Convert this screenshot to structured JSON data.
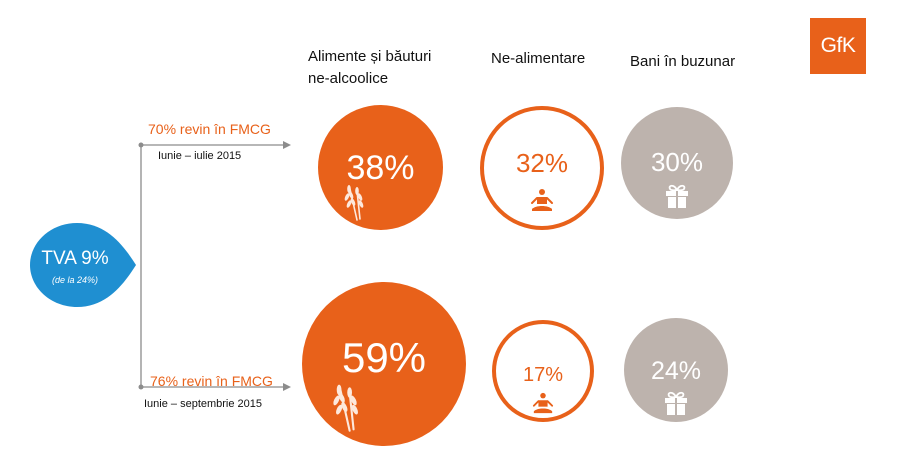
{
  "logo": {
    "text": "GfK",
    "color": "#e8611a"
  },
  "columns": {
    "food": "Alimente și băuturi ne-alcoolice",
    "nonfood": "Ne-alimentare",
    "pocket": "Bani în buzunar"
  },
  "source": {
    "title": "TVA 9%",
    "subtitle": "(de la 24%)",
    "color": "#1f8fd1"
  },
  "rows": [
    {
      "label": "70% revin în FMCG",
      "period": "Iunie – iulie 2015",
      "food": "38%",
      "nonfood": "32%",
      "pocket": "30%"
    },
    {
      "label": "76% revin în FMCG",
      "period": "Iunie – septembrie 2015",
      "food": "59%",
      "nonfood": "17%",
      "pocket": "24%"
    }
  ],
  "colors": {
    "orange": "#e8611a",
    "gray": "#bdb3ad",
    "line": "#8c8c8c"
  },
  "icons": {
    "food": "wheat-icon",
    "nonfood": "meditation-person-icon",
    "pocket": "gift-icon"
  }
}
